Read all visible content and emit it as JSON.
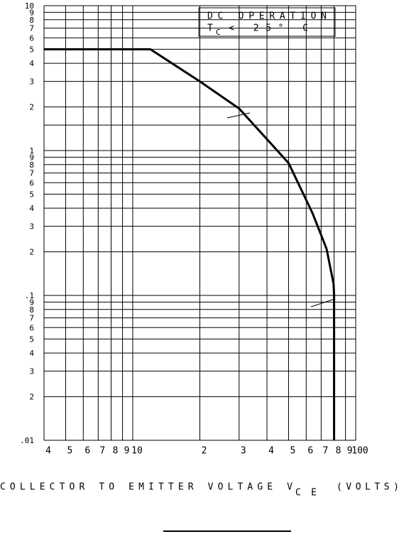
{
  "chart_data": {
    "type": "line",
    "annotations": [
      "DC OPERATION",
      "T",
      "C",
      "< 25° C"
    ],
    "xlabel": [
      "COLLECTOR TO EMITTER VOLTAGE V",
      "CE",
      "(VOLTS)"
    ],
    "log_x": true,
    "log_y": true,
    "grid": true,
    "xlim": [
      4,
      100
    ],
    "ylim": [
      0.01,
      10
    ],
    "xticks": [
      4,
      5,
      6,
      7,
      8,
      9,
      10,
      {
        "value": 20,
        "label": "2"
      },
      {
        "value": 30,
        "label": "3"
      },
      {
        "value": 40,
        "label": "4"
      },
      {
        "value": 50,
        "label": "5"
      },
      {
        "value": 60,
        "label": "6"
      },
      {
        "value": 70,
        "label": "7"
      },
      {
        "value": 80,
        "label": "8"
      },
      {
        "value": 90,
        "label": "9"
      },
      100
    ],
    "yticks": [
      {
        "value": 0.01,
        "label": ".01"
      },
      {
        "value": 0.02,
        "label": "2"
      },
      {
        "value": 0.03,
        "label": "3"
      },
      {
        "value": 0.04,
        "label": "4"
      },
      {
        "value": 0.05,
        "label": "5"
      },
      {
        "value": 0.06,
        "label": "6"
      },
      {
        "value": 0.07,
        "label": "7"
      },
      {
        "value": 0.08,
        "label": "8"
      },
      {
        "value": 0.09,
        "label": "9"
      },
      {
        "value": 0.1,
        "label": ".1"
      },
      {
        "value": 0.2,
        "label": "2"
      },
      {
        "value": 0.3,
        "label": "3"
      },
      {
        "value": 0.4,
        "label": "4"
      },
      {
        "value": 0.5,
        "label": "5"
      },
      {
        "value": 0.6,
        "label": "6"
      },
      {
        "value": 0.7,
        "label": "7"
      },
      {
        "value": 0.8,
        "label": "8"
      },
      {
        "value": 0.9,
        "label": "9"
      },
      1,
      2,
      3,
      4,
      5,
      6,
      7,
      8,
      9,
      10
    ],
    "yminor": [
      1.5
    ],
    "series": [
      {
        "color": "#000000",
        "x": [
          4,
          12,
          20,
          30,
          50,
          64,
          74,
          79.6,
          80,
          80
        ],
        "values": [
          5,
          5,
          3,
          1.95,
          0.82,
          0.37,
          0.21,
          0.12,
          0.1,
          0.01
        ]
      }
    ]
  }
}
